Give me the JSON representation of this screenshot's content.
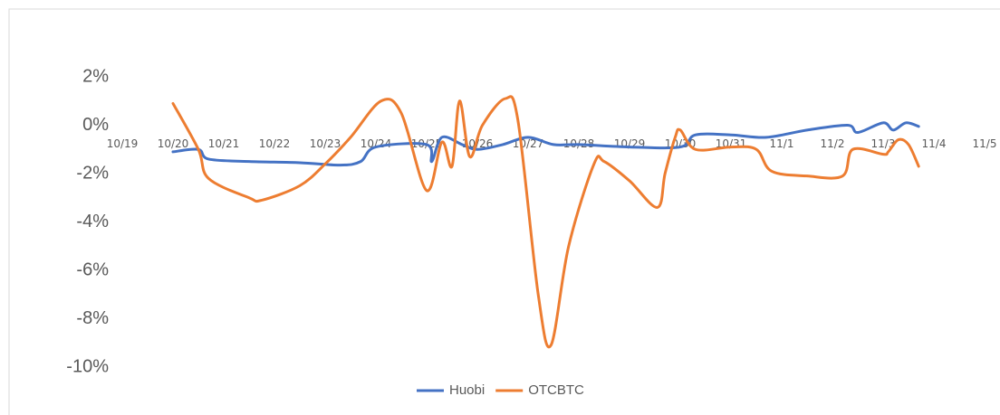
{
  "chart_data": {
    "type": "line",
    "xlim": [
      0,
      17.6
    ],
    "xticks": [
      {
        "value": 0,
        "label": "10/19"
      },
      {
        "value": 1,
        "label": "10/20"
      },
      {
        "value": 2,
        "label": "10/21"
      },
      {
        "value": 3,
        "label": "10/22"
      },
      {
        "value": 4,
        "label": "10/23"
      },
      {
        "value": 5,
        "label": "10/24"
      },
      {
        "value": 6,
        "label": "10/25"
      },
      {
        "value": 7,
        "label": "10/26"
      },
      {
        "value": 8,
        "label": "10/27"
      },
      {
        "value": 9,
        "label": "10/28"
      },
      {
        "value": 10,
        "label": "10/29"
      },
      {
        "value": 11,
        "label": "10/30"
      },
      {
        "value": 12,
        "label": "10/31"
      },
      {
        "value": 13,
        "label": "11/1"
      },
      {
        "value": 14,
        "label": "11/2"
      },
      {
        "value": 15,
        "label": "11/3"
      },
      {
        "value": 16,
        "label": "11/4"
      },
      {
        "value": 17,
        "label": "11/5"
      }
    ],
    "ylim": [
      -10,
      2
    ],
    "yticks": [
      {
        "value": -10,
        "label": "-10%"
      },
      {
        "value": -8,
        "label": "-8%"
      },
      {
        "value": -6,
        "label": "-6%"
      },
      {
        "value": -4,
        "label": "-4%"
      },
      {
        "value": -2,
        "label": "-2%"
      },
      {
        "value": 0,
        "label": "0%"
      },
      {
        "value": 2,
        "label": "2%"
      }
    ],
    "legend": "bottom",
    "series": [
      {
        "name": "Huobi",
        "color": "#4472c4",
        "x": [
          1,
          1.5,
          1.7,
          2.5,
          3.5,
          4.3,
          4.7,
          5,
          6,
          6.1,
          6.3,
          6.7,
          7,
          7.5,
          8,
          8.5,
          9,
          10,
          11,
          11.3,
          12,
          12.7,
          13.5,
          14.3,
          14.5,
          15,
          15.2,
          15.45,
          15.7
        ],
        "values": [
          -1.1,
          -1.0,
          -1.4,
          -1.5,
          -1.55,
          -1.65,
          -1.5,
          -0.9,
          -0.8,
          -1.5,
          -0.5,
          -0.8,
          -1.0,
          -0.8,
          -0.5,
          -0.8,
          -0.8,
          -0.9,
          -0.9,
          -0.4,
          -0.4,
          -0.5,
          -0.2,
          0.0,
          -0.3,
          0.1,
          -0.2,
          0.1,
          -0.05
        ]
      },
      {
        "name": "OTCBTC",
        "color": "#ed7d31",
        "x": [
          1,
          1.5,
          1.7,
          2.5,
          2.75,
          3.5,
          4,
          4.5,
          5.1,
          5.5,
          6.0,
          6.3,
          6.5,
          6.65,
          6.85,
          7.1,
          7.55,
          7.8,
          8.2,
          8.45,
          8.8,
          9.3,
          9.5,
          10,
          10.55,
          10.7,
          10.9,
          11,
          11.3,
          12,
          12.5,
          12.8,
          13.5,
          14.2,
          14.4,
          15,
          15.1,
          15.3,
          15.5,
          15.7
        ],
        "values": [
          0.9,
          -1.0,
          -2.2,
          -3.0,
          -3.1,
          -2.5,
          -1.6,
          -0.5,
          1.0,
          0.5,
          -2.7,
          -0.7,
          -1.7,
          1.0,
          -1.3,
          0.0,
          1.1,
          0.2,
          -7.0,
          -9.1,
          -5.0,
          -1.6,
          -1.5,
          -2.3,
          -3.4,
          -2.0,
          -0.5,
          -0.2,
          -1.0,
          -0.9,
          -1.0,
          -1.9,
          -2.1,
          -2.1,
          -1.0,
          -1.2,
          -1.1,
          -0.6,
          -0.8,
          -1.7
        ]
      }
    ]
  }
}
